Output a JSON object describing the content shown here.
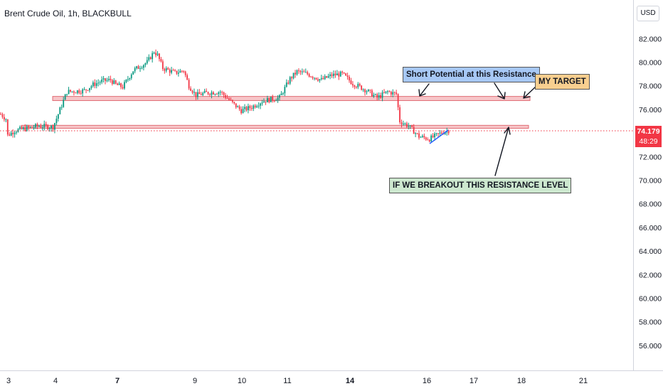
{
  "header": {
    "title": "Brent Crude Oil, 1h, BLACKBULL"
  },
  "price_scale": {
    "currency_button": "USD",
    "last_price": "74.179",
    "countdown": "48:29"
  },
  "annotations": {
    "short": "Short Potential at this  Resistance",
    "target": "MY TARGET",
    "breakout": "IF WE BREAKOUT THIS RESISTANCE LEVEL"
  },
  "colors": {
    "up": "#089981",
    "down": "#f23645",
    "zone_fill": "#f7c6c9",
    "zone_border": "#e06b73",
    "price_line": "#f23645",
    "axis_text": "#131722"
  },
  "chart_data": {
    "type": "candlestick",
    "title": "Brent Crude Oil, 1h, BLACKBULL",
    "ylim": [
      54.0,
      84.0
    ],
    "y_ticks": [
      "82.000",
      "80.000",
      "78.000",
      "76.000",
      "74.000",
      "72.000",
      "70.000",
      "68.000",
      "66.000",
      "64.000",
      "62.000",
      "60.000",
      "58.000",
      "56.000"
    ],
    "x_ticks": [
      "3",
      "4",
      "7",
      "9",
      "10",
      "11",
      "14",
      "16",
      "17",
      "18",
      "21"
    ],
    "x_ticks_bold": [
      "7",
      "14"
    ],
    "last_price": 74.179,
    "resistance_zones": [
      {
        "low": 76.75,
        "high": 77.1
      },
      {
        "low": 74.4,
        "high": 74.65
      }
    ],
    "close_path": [
      {
        "t": 0,
        "price": 75.6
      },
      {
        "t": 3,
        "price": 75.2
      },
      {
        "t": 4,
        "price": 73.8
      },
      {
        "t": 8,
        "price": 74.2
      },
      {
        "t": 22,
        "price": 74.6
      },
      {
        "t": 30,
        "price": 74.5
      },
      {
        "t": 33,
        "price": 75.6
      },
      {
        "t": 38,
        "price": 77.5
      },
      {
        "t": 48,
        "price": 77.6
      },
      {
        "t": 53,
        "price": 78.1
      },
      {
        "t": 58,
        "price": 78.4
      },
      {
        "t": 63,
        "price": 78.5
      },
      {
        "t": 66,
        "price": 78.1
      },
      {
        "t": 70,
        "price": 77.9
      },
      {
        "t": 76,
        "price": 79.3
      },
      {
        "t": 84,
        "price": 80.0
      },
      {
        "t": 88,
        "price": 80.9
      },
      {
        "t": 90,
        "price": 80.6
      },
      {
        "t": 93,
        "price": 79.5
      },
      {
        "t": 100,
        "price": 79.1
      },
      {
        "t": 105,
        "price": 79.3
      },
      {
        "t": 108,
        "price": 78.0
      },
      {
        "t": 112,
        "price": 77.2
      },
      {
        "t": 118,
        "price": 77.4
      },
      {
        "t": 126,
        "price": 77.5
      },
      {
        "t": 134,
        "price": 76.4
      },
      {
        "t": 138,
        "price": 75.9
      },
      {
        "t": 144,
        "price": 76.2
      },
      {
        "t": 150,
        "price": 76.7
      },
      {
        "t": 160,
        "price": 77.0
      },
      {
        "t": 166,
        "price": 78.6
      },
      {
        "t": 170,
        "price": 79.2
      },
      {
        "t": 176,
        "price": 79.0
      },
      {
        "t": 184,
        "price": 78.5
      },
      {
        "t": 190,
        "price": 78.9
      },
      {
        "t": 196,
        "price": 79.0
      },
      {
        "t": 202,
        "price": 78.2
      },
      {
        "t": 210,
        "price": 77.6
      },
      {
        "t": 216,
        "price": 77.0
      },
      {
        "t": 222,
        "price": 77.5
      },
      {
        "t": 227,
        "price": 77.3
      },
      {
        "t": 229,
        "price": 75.0
      },
      {
        "t": 234,
        "price": 74.6
      },
      {
        "t": 240,
        "price": 73.7
      },
      {
        "t": 246,
        "price": 73.5
      },
      {
        "t": 250,
        "price": 73.8
      },
      {
        "t": 254,
        "price": 74.1
      },
      {
        "t": 257,
        "price": 74.2
      }
    ]
  }
}
